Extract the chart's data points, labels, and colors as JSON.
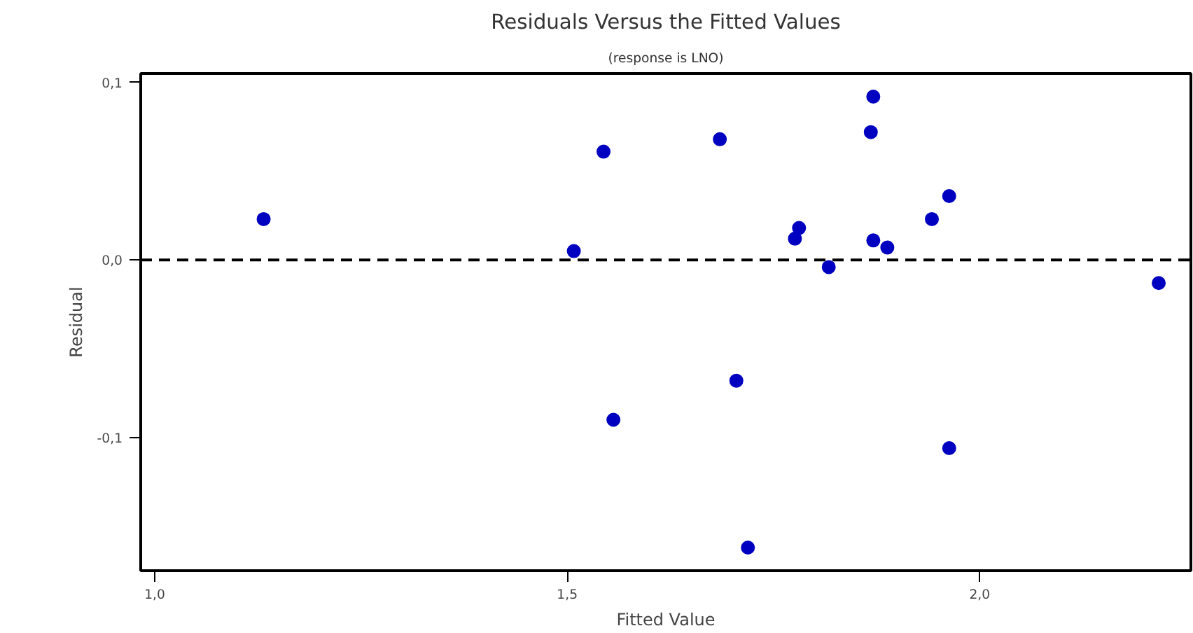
{
  "chart_data": {
    "type": "scatter",
    "title": "Residuals Versus the Fitted Values",
    "subtitle": "(response is LNO)",
    "xlabel": "Fitted Value",
    "ylabel": "Residual",
    "x": [
      1.132,
      1.508,
      1.544,
      1.556,
      1.685,
      1.705,
      1.719,
      1.776,
      1.781,
      1.817,
      1.868,
      1.871,
      1.871,
      1.888,
      1.942,
      1.963,
      1.963,
      2.217
    ],
    "series": [
      {
        "color": "#0000c0",
        "values": [
          0.023,
          0.005,
          0.061,
          -0.09,
          0.068,
          -0.068,
          -0.162,
          0.012,
          0.018,
          -0.004,
          0.072,
          0.092,
          0.011,
          0.007,
          0.023,
          0.036,
          -0.106,
          -0.013
        ]
      }
    ],
    "xlim": [
      0.983,
      2.256
    ],
    "ylim": [
      -0.175,
      0.105
    ],
    "xticks": [
      {
        "value": 1.0,
        "label": "1,0"
      },
      {
        "value": 1.5,
        "label": "1,5"
      },
      {
        "value": 2.0,
        "label": "2,0"
      }
    ],
    "yticks": [
      {
        "value": -0.1,
        "label": "-0,1"
      },
      {
        "value": 0.0,
        "label": "0,0"
      },
      {
        "value": 0.1,
        "label": "0,1"
      }
    ],
    "ref_lines": [
      {
        "axis": "y",
        "value": 0.0,
        "color": "#000000",
        "line_style": "dashed"
      }
    ],
    "marker": "circle",
    "grid": false
  }
}
